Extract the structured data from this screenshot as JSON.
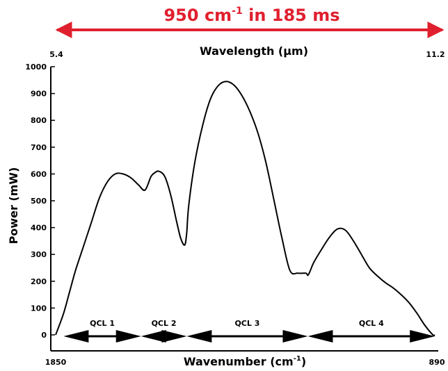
{
  "chart_data": {
    "type": "line",
    "banner": {
      "text_main": "950 cm",
      "text_sup": "-1",
      "text_tail": " in 185 ms",
      "color": "#e0202e"
    },
    "xlabel_bottom_main": "Wavenumber (cm",
    "xlabel_bottom_sup": "-1",
    "xlabel_bottom_tail": ")",
    "xlabel_top": "Wavelength (µm)",
    "ylabel": "Power (mW)",
    "x_bottom_ticks": [
      "1850",
      "890"
    ],
    "x_top_ticks": [
      "5.4",
      "11.2"
    ],
    "y_ticks": [
      0,
      100,
      200,
      300,
      400,
      500,
      600,
      700,
      800,
      900,
      1000
    ],
    "xlim": [
      1850,
      890
    ],
    "ylim": [
      0,
      1000
    ],
    "series": [
      {
        "color": "#000000",
        "x": [
          1850,
          1830,
          1815,
          1800,
          1780,
          1760,
          1740,
          1720,
          1700,
          1680,
          1660,
          1642,
          1625,
          1610,
          1600,
          1590,
          1575,
          1560,
          1545,
          1535,
          1525,
          1520,
          1515,
          1500,
          1480,
          1460,
          1440,
          1420,
          1400,
          1380,
          1360,
          1340,
          1320,
          1300,
          1280,
          1260,
          1240,
          1220,
          1215,
          1210,
          1200,
          1180,
          1160,
          1140,
          1120,
          1100,
          1080,
          1060,
          1040,
          1020,
          1000,
          980,
          960,
          940,
          920,
          900,
          895
        ],
        "y": [
          0,
          80,
          160,
          240,
          330,
          420,
          510,
          570,
          600,
          600,
          585,
          560,
          540,
          590,
          605,
          610,
          590,
          520,
          420,
          360,
          335,
          380,
          480,
          640,
          780,
          880,
          930,
          945,
          930,
          890,
          830,
          750,
          640,
          500,
          360,
          240,
          230,
          230,
          222,
          235,
          270,
          320,
          365,
          395,
          390,
          350,
          300,
          250,
          220,
          195,
          175,
          150,
          120,
          80,
          35,
          0,
          0
        ]
      }
    ],
    "qcl_segments": [
      {
        "label": "QCL 1",
        "x_start": 1830,
        "x_end": 1635
      },
      {
        "label": "QCL 2",
        "x_start": 1635,
        "x_end": 1520
      },
      {
        "label": "QCL 3",
        "x_start": 1520,
        "x_end": 1215
      },
      {
        "label": "QCL 4",
        "x_start": 1215,
        "x_end": 895
      }
    ],
    "grid": false,
    "legend": "none"
  }
}
